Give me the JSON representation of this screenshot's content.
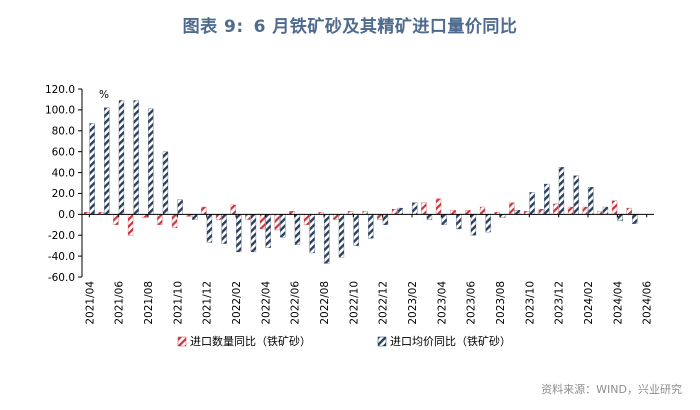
{
  "title": {
    "figure_no": "图表 9:",
    "text": "6 月铁矿砂及其精矿进口量价同比"
  },
  "source": "资料来源：WIND，兴业研究",
  "colors": {
    "series_volume": "#c8343c",
    "series_price": "#2b3f5f",
    "title": "#4e6a8e"
  },
  "chart_data": {
    "type": "bar",
    "unit_label": "%",
    "ylim": [
      -60,
      120
    ],
    "yticks": [
      "120.0",
      "100.0",
      "80.0",
      "60.0",
      "40.0",
      "20.0",
      "0.0",
      "-20.0",
      "-40.0",
      "-60.0"
    ],
    "legend_position": "bottom",
    "categories": [
      "2021/04",
      "2021/05",
      "2021/06",
      "2021/07",
      "2021/08",
      "2021/09",
      "2021/10",
      "2021/11",
      "2021/12",
      "2022/01",
      "2022/02",
      "2022/03",
      "2022/04",
      "2022/05",
      "2022/06",
      "2022/07",
      "2022/08",
      "2022/09",
      "2022/10",
      "2022/11",
      "2022/12",
      "2023/01",
      "2023/02",
      "2023/03",
      "2023/04",
      "2023/05",
      "2023/06",
      "2023/07",
      "2023/08",
      "2023/09",
      "2023/10",
      "2023/11",
      "2023/12",
      "2024/01",
      "2024/02",
      "2024/03",
      "2024/04",
      "2024/05",
      "2024/06"
    ],
    "tick_labels": [
      "2021/04",
      "2021/06",
      "2021/08",
      "2021/10",
      "2021/12",
      "2022/02",
      "2022/04",
      "2022/06",
      "2022/08",
      "2022/10",
      "2022/12",
      "2023/02",
      "2023/04",
      "2023/06",
      "2023/08",
      "2023/10",
      "2023/12",
      "2024/02",
      "2024/04",
      "2024/06"
    ],
    "series": [
      {
        "name": "进口数量同比（铁矿砂）",
        "pattern": "diagonal-red",
        "values": [
          2,
          2,
          -10,
          -20,
          -3,
          -10,
          -13,
          -2,
          7,
          -5,
          9,
          -5,
          -14,
          -15,
          3,
          -10,
          2,
          -5,
          3,
          3,
          -5,
          5,
          0,
          11,
          15,
          4,
          4,
          7,
          2,
          11,
          3,
          5,
          10,
          7,
          7,
          3,
          13,
          6,
          0
        ]
      },
      {
        "name": "进口均价同比（铁矿砂）",
        "pattern": "diagonal-navy",
        "values": [
          87,
          102,
          109,
          109,
          101,
          60,
          14,
          -5,
          -27,
          -28,
          -36,
          -36,
          -32,
          -22,
          -29,
          -37,
          -47,
          -41,
          -30,
          -23,
          -10,
          6,
          11,
          -5,
          -10,
          -14,
          -20,
          -17,
          -3,
          4,
          21,
          29,
          45,
          37,
          26,
          7,
          -6,
          -9,
          0
        ]
      }
    ]
  }
}
